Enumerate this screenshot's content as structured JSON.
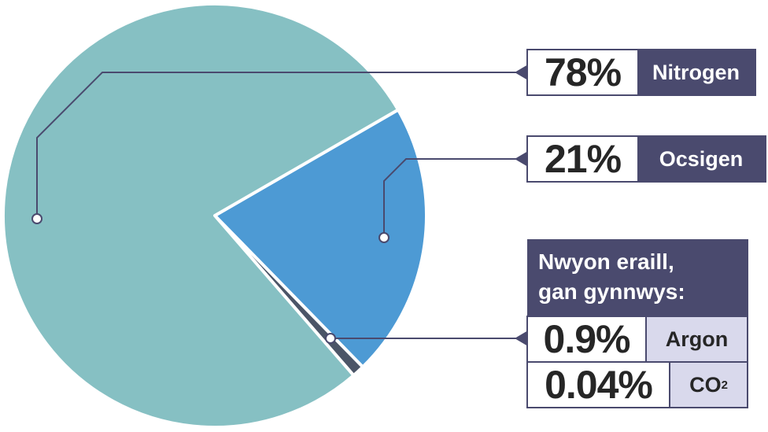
{
  "chart_data": {
    "type": "pie",
    "categories": [
      "Nitrogen",
      "Ocsigen",
      "Argon",
      "CO2"
    ],
    "values": [
      78,
      21,
      0.9,
      0.04
    ],
    "labels": [
      "78%",
      "21%",
      "0.9%",
      "0.04%"
    ],
    "colors": {
      "Nitrogen": "#86c0c3",
      "Ocsigen": "#4d9ad4",
      "other": "#4b5567"
    },
    "other_group_title_line1": "Nwyon eraill,",
    "other_group_title_line2": "gan gynnwys:",
    "co2_label_main": "CO",
    "co2_label_sub": "2"
  }
}
